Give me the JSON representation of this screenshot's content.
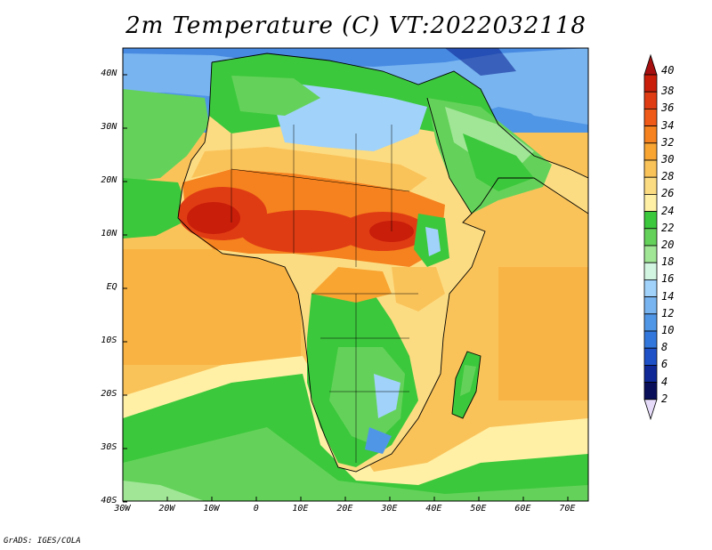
{
  "title": "2m Temperature (C) VT:2022032118",
  "credit": "GrADS: IGES/COLA",
  "x_ticks": [
    "30W",
    "20W",
    "10W",
    "0",
    "10E",
    "20E",
    "30E",
    "40E",
    "50E",
    "60E",
    "70E"
  ],
  "y_ticks": [
    "40N",
    "30N",
    "20N",
    "10N",
    "EQ",
    "10S",
    "20S",
    "30S",
    "40S"
  ],
  "colorbar": {
    "labels": [
      "40",
      "38",
      "36",
      "34",
      "32",
      "30",
      "28",
      "26",
      "24",
      "22",
      "20",
      "18",
      "16",
      "14",
      "12",
      "10",
      "8",
      "6",
      "4",
      "2"
    ],
    "colors_top_to_bottom": [
      "#a50f0f",
      "#c81e0a",
      "#e03c14",
      "#f05a19",
      "#f5821e",
      "#f8a532",
      "#fac35a",
      "#fcdc82",
      "#fff0a5",
      "#3cc83c",
      "#64d25a",
      "#a0e696",
      "#d2f5e1",
      "#a0d2fa",
      "#78b4f0",
      "#5096e6",
      "#3278dc",
      "#1e50c8",
      "#0f2896",
      "#0a0f5a"
    ],
    "under_color": "#e6dcfa"
  }
}
